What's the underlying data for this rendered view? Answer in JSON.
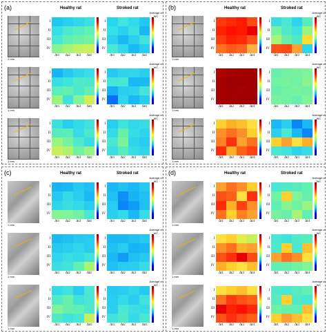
{
  "panels": [
    {
      "label": "(a)",
      "healthy_title": "Healthy rat",
      "stroked_title": "Stroked rat",
      "micro": "gray",
      "cb_labels": [
        "Average of WC",
        "Average of WC",
        "Average of WC"
      ],
      "rows": [
        {
          "healthy": [
            [
              "#22c7f0",
              "#28d0ee",
              "#30d9ea",
              "#3de0e0"
            ],
            [
              "#35e0e4",
              "#4de8d0",
              "#55ecc0",
              "#5ef0b4"
            ],
            [
              "#48e8d4",
              "#60f0b4",
              "#6cf2a8",
              "#74f4a0"
            ],
            [
              "#88f490",
              "#a6f47a",
              "#c0f264",
              "#ccf05a"
            ]
          ],
          "stroked": [
            [
              "#28d6ee",
              "#40e4e0",
              "#30dcea",
              "#22c8f0"
            ],
            [
              "#34e0e8",
              "#2ad0ee",
              "#3ce0e0",
              "#1ab8f2"
            ],
            [
              "#2cd0ee",
              "#1ab8f4",
              "#2ad0ee",
              "#40e2dc"
            ],
            [
              "#48e8d4",
              "#30d8ea",
              "#1cbaf2",
              "#28ccf0"
            ]
          ]
        },
        {
          "healthy": [
            [
              "#18b4f4",
              "#26caf0",
              "#30d6ea",
              "#38dcea"
            ],
            [
              "#38dee4",
              "#40e4de",
              "#50eac8",
              "#4ce8cc"
            ],
            [
              "#5aeeb8",
              "#62f0b0",
              "#4ee8ca",
              "#62eeb4"
            ],
            [
              "#98f480",
              "#3ee0e0",
              "#80f498",
              "#d0ee56"
            ]
          ],
          "stroked": [
            [
              "#26caf0",
              "#2ed4ec",
              "#30d6ec",
              "#28cef0"
            ],
            [
              "#44e6d8",
              "#48e6d4",
              "#1ab8f4",
              "#1cbaf2"
            ],
            [
              "#18b2f6",
              "#2ccef0",
              "#2ed2ec",
              "#44e4d8"
            ],
            [
              "#0870f8",
              "#30d4ec",
              "#1ab8f4",
              "#28ccf0"
            ]
          ]
        },
        {
          "healthy": [
            [
              "#3cdee2",
              "#28ccf0",
              "#34dae8",
              "#40e2de"
            ],
            [
              "#58ecbc",
              "#5aeeba",
              "#38dce6",
              "#4ce8ce"
            ],
            [
              "#9af480",
              "#78f29c",
              "#50eac8",
              "#38dce6"
            ],
            [
              "#c8f05c",
              "#b0f26e",
              "#70f2a2",
              "#98f480"
            ]
          ],
          "stroked": [
            [
              "#28ccf0",
              "#40e2dc",
              "#30d8ea",
              "#38dce6"
            ],
            [
              "#34dae8",
              "#68f0aa",
              "#38dce6",
              "#2ed4ec"
            ],
            [
              "#48e8d4",
              "#7cf29a",
              "#2ed4ec",
              "#28ccf0"
            ],
            [
              "#3cdee2",
              "#58ecbc",
              "#38dce6",
              "#30d6ea"
            ]
          ]
        }
      ]
    },
    {
      "label": "(b)",
      "healthy_title": "Healthy rat",
      "stroked_title": "Stroked rat",
      "micro": "gray",
      "cb_labels": [
        "Average of WC",
        "Average of WC",
        "Average of WC"
      ],
      "rows": [
        {
          "healthy": [
            [
              "#ff3a10",
              "#ff2a08",
              "#ff1a00",
              "#ff4a14"
            ],
            [
              "#ff2200",
              "#ff1000",
              "#ff1800",
              "#e80000"
            ],
            [
              "#ff3c10",
              "#ff2000",
              "#ff2a08",
              "#ff5018"
            ],
            [
              "#ff7020",
              "#ff5a18",
              "#ff6420",
              "#ffb040"
            ]
          ],
          "stroked": [
            [
              "#3adee2",
              "#48e8d4",
              "#2ed4ec",
              "#58ecbc"
            ],
            [
              "#78f29c",
              "#50eac8",
              "#40e2dc",
              "#9af480"
            ],
            [
              "#a8f474",
              "#68f0aa",
              "#50eac8",
              "#ffdc30"
            ],
            [
              "#ff5018",
              "#ff4a14",
              "#ffa030",
              "#2ed4ec"
            ]
          ]
        },
        {
          "healthy": [
            [
              "#b00000",
              "#a80000",
              "#a40000",
              "#a00000"
            ],
            [
              "#a80000",
              "#9c0000",
              "#9e0000",
              "#a00000"
            ],
            [
              "#a80000",
              "#a00000",
              "#a40000",
              "#a00000"
            ],
            [
              "#a80000",
              "#a40000",
              "#a00000",
              "#9c0000"
            ]
          ],
          "stroked": [
            [
              "#68f0aa",
              "#70f2a2",
              "#78f29c",
              "#80f498"
            ],
            [
              "#70f2a2",
              "#78f29c",
              "#70f2a2",
              "#88f490"
            ],
            [
              "#68f0aa",
              "#70f2a2",
              "#78f29c",
              "#70f2a2"
            ],
            [
              "#78f29c",
              "#70f2a2",
              "#68f0aa",
              "#80f498"
            ]
          ]
        },
        {
          "healthy": [
            [
              "#ffd030",
              "#ffb028",
              "#ffc030",
              "#ffe040"
            ],
            [
              "#ff9028",
              "#ff7020",
              "#ff9028",
              "#ffd030"
            ],
            [
              "#ff8020",
              "#ff3010",
              "#ffa030",
              "#ff7020"
            ],
            [
              "#ff2a08",
              "#ffb028",
              "#ff6018",
              "#ff4010"
            ]
          ],
          "stroked": [
            [
              "#1ab8f4",
              "#2ccef0",
              "#0a86f8",
              "#1ab8f4"
            ],
            [
              "#2ccef0",
              "#48e8d4",
              "#1ab8f4",
              "#0a86f8"
            ],
            [
              "#ffd030",
              "#ffa030",
              "#ffe040",
              "#ffb028"
            ],
            [
              "#48e8d4",
              "#40e2dc",
              "#2ed4ec",
              "#38dce6"
            ]
          ]
        }
      ]
    },
    {
      "label": "(c)",
      "healthy_title": "Healthy rat",
      "stroked_title": "Stroked rat",
      "micro": "vessel",
      "cb_labels": [
        "Average of WC",
        "Average of WC",
        "Average of WC"
      ],
      "rows": [
        {
          "healthy": [
            [
              "#18b4f4",
              "#1cbaf2",
              "#26caf0",
              "#20c0f2"
            ],
            [
              "#26caf0",
              "#34dae8",
              "#2ccef0",
              "#1ab8f4"
            ],
            [
              "#30d6ea",
              "#3cdee2",
              "#34dae8",
              "#28ccf0"
            ],
            [
              "#88f490",
              "#80f498",
              "#70f2a2",
              "#48e8d4"
            ]
          ],
          "stroked": [
            [
              "#1ab8f4",
              "#20c0f2",
              "#1ab8f4",
              "#26caf0"
            ],
            [
              "#20c0f2",
              "#0c90f8",
              "#18b4f4",
              "#20c0f2"
            ],
            [
              "#28ccf0",
              "#0a86f8",
              "#0e9cf6",
              "#20c0f2"
            ],
            [
              "#2ccef0",
              "#34dae8",
              "#1ab8f4",
              "#38dce6"
            ]
          ]
        },
        {
          "healthy": [
            [
              "#1cbaf2",
              "#20c0f2",
              "#26caf0",
              "#28ccf0"
            ],
            [
              "#26caf0",
              "#2ccef0",
              "#30d6ea",
              "#28ccf0"
            ],
            [
              "#30d6ea",
              "#3adee2",
              "#34dae8",
              "#40e2dc"
            ],
            [
              "#3cdee2",
              "#40e2dc",
              "#60f0b4",
              "#a8f474"
            ]
          ],
          "stroked": [
            [
              "#1ab8f4",
              "#1cbaf2",
              "#20c0f2",
              "#26caf0"
            ],
            [
              "#20c0f2",
              "#28ccf0",
              "#18b4f4",
              "#1ab8f4"
            ],
            [
              "#1ab8f4",
              "#0e9cf6",
              "#20c0f2",
              "#26caf0"
            ],
            [
              "#20c0f2",
              "#28ccf0",
              "#2ccef0",
              "#38dce6"
            ]
          ]
        },
        {
          "healthy": [
            [
              "#34dae8",
              "#40e2dc",
              "#28ccf0",
              "#48e8d4"
            ],
            [
              "#50eac8",
              "#68f0aa",
              "#40e2dc",
              "#48e8d4"
            ],
            [
              "#80f498",
              "#68f0aa",
              "#60f0b4",
              "#50eac8"
            ],
            [
              "#50eac8",
              "#40e2dc",
              "#48e8d4",
              "#c8f05c"
            ]
          ],
          "stroked": [
            [
              "#26caf0",
              "#28ccf0",
              "#30d6ea",
              "#26caf0"
            ],
            [
              "#28ccf0",
              "#34dae8",
              "#2ccef0",
              "#40e2dc"
            ],
            [
              "#2ccef0",
              "#48e8d4",
              "#3cdee2",
              "#38dce6"
            ],
            [
              "#40e2dc",
              "#50eac8",
              "#34dae8",
              "#48e8d4"
            ]
          ]
        }
      ]
    },
    {
      "label": "(d)",
      "healthy_title": "Healthy rat",
      "stroked_title": "Stroked rat",
      "micro": "vessel",
      "cb_labels": [
        "Average of WC",
        "Average of WC",
        "Average of WC"
      ],
      "rows": [
        {
          "healthy": [
            [
              "#ffa030",
              "#ff7020",
              "#ff9028",
              "#ffd030"
            ],
            [
              "#ff5018",
              "#ff6018",
              "#ffe040",
              "#ff3010"
            ],
            [
              "#ff2a08",
              "#ffb028",
              "#ff4010",
              "#ff9028"
            ],
            [
              "#ff7020",
              "#ffd030",
              "#ff8020",
              "#ffa030"
            ]
          ],
          "stroked": [
            [
              "#48e8d4",
              "#50eac8",
              "#58ecbc",
              "#60f0b4"
            ],
            [
              "#70f2a2",
              "#ffd030",
              "#80f498",
              "#68f0aa"
            ],
            [
              "#60f0b4",
              "#88f490",
              "#70f2a2",
              "#9af480"
            ],
            [
              "#78f29c",
              "#68f0aa",
              "#a8f474",
              "#60f0b4"
            ]
          ]
        },
        {
          "healthy": [
            [
              "#ffe040",
              "#ffd030",
              "#e0ee48",
              "#c8f05c"
            ],
            [
              "#ff9028",
              "#ff7020",
              "#ffb028",
              "#ffa030"
            ],
            [
              "#ff5018",
              "#ff3010",
              "#e80000",
              "#ff4a14"
            ],
            [
              "#ffb028",
              "#ffd030",
              "#ffe040",
              "#ffc030"
            ]
          ],
          "stroked": [
            [
              "#48e8d4",
              "#40e2dc",
              "#50eac8",
              "#58ecbc"
            ],
            [
              "#50eac8",
              "#ffd030",
              "#48e8d4",
              "#ffc030"
            ],
            [
              "#ffa030",
              "#ff7020",
              "#ff9028",
              "#ffe040"
            ],
            [
              "#60f0b4",
              "#68f0aa",
              "#70f2a2",
              "#80f498"
            ]
          ]
        },
        {
          "healthy": [
            [
              "#ffe040",
              "#ffd030",
              "#ffc030",
              "#ffe040"
            ],
            [
              "#ff7020",
              "#ff3a10",
              "#ff5018",
              "#ff6018"
            ],
            [
              "#e80000",
              "#ff2200",
              "#ff1000",
              "#ff2a08"
            ],
            [
              "#ff5018",
              "#ff3010",
              "#ff4a14",
              "#ff6018"
            ]
          ],
          "stroked": [
            [
              "#50eac8",
              "#48e8d4",
              "#58ecbc",
              "#60f0b4"
            ],
            [
              "#58ecbc",
              "#ffd030",
              "#50eac8",
              "#48e8d4"
            ],
            [
              "#70f2a2",
              "#68f0aa",
              "#60f0b4",
              "#ffc030"
            ],
            [
              "#ffd030",
              "#ffa030",
              "#ffc030",
              "#ffe040"
            ]
          ]
        }
      ]
    }
  ],
  "row_labels": [
    "I",
    "II",
    "III",
    "IV"
  ],
  "col_labels": [
    "Δt1",
    "Δt2",
    "Δt3",
    "Δt4"
  ],
  "scale_bar": "1 mm"
}
